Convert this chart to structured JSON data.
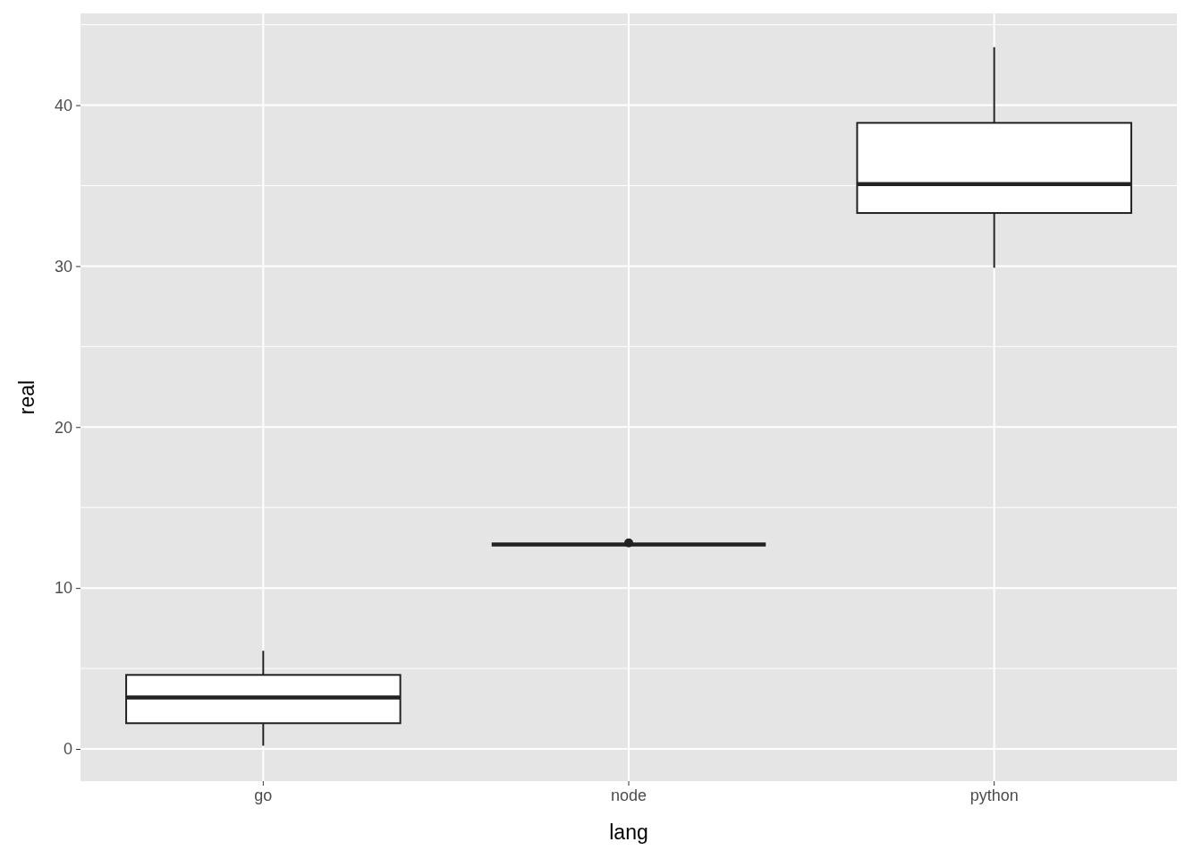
{
  "chart_data": {
    "type": "box",
    "xlabel": "lang",
    "ylabel": "real",
    "categories": [
      "go",
      "node",
      "python"
    ],
    "boxes": [
      {
        "low": 0.2,
        "q1": 1.6,
        "median": 3.2,
        "q3": 4.6,
        "high": 6.1
      },
      {
        "low": 12.7,
        "q1": 12.7,
        "median": 12.7,
        "q3": 12.7,
        "high": 12.7,
        "outliers": [
          12.8
        ]
      },
      {
        "low": 29.9,
        "q1": 33.3,
        "median": 35.1,
        "q3": 38.9,
        "high": 43.6
      }
    ],
    "ylim": [
      -2,
      45.7
    ],
    "yticks": [
      0,
      10,
      20,
      30,
      40
    ],
    "grid": true
  }
}
